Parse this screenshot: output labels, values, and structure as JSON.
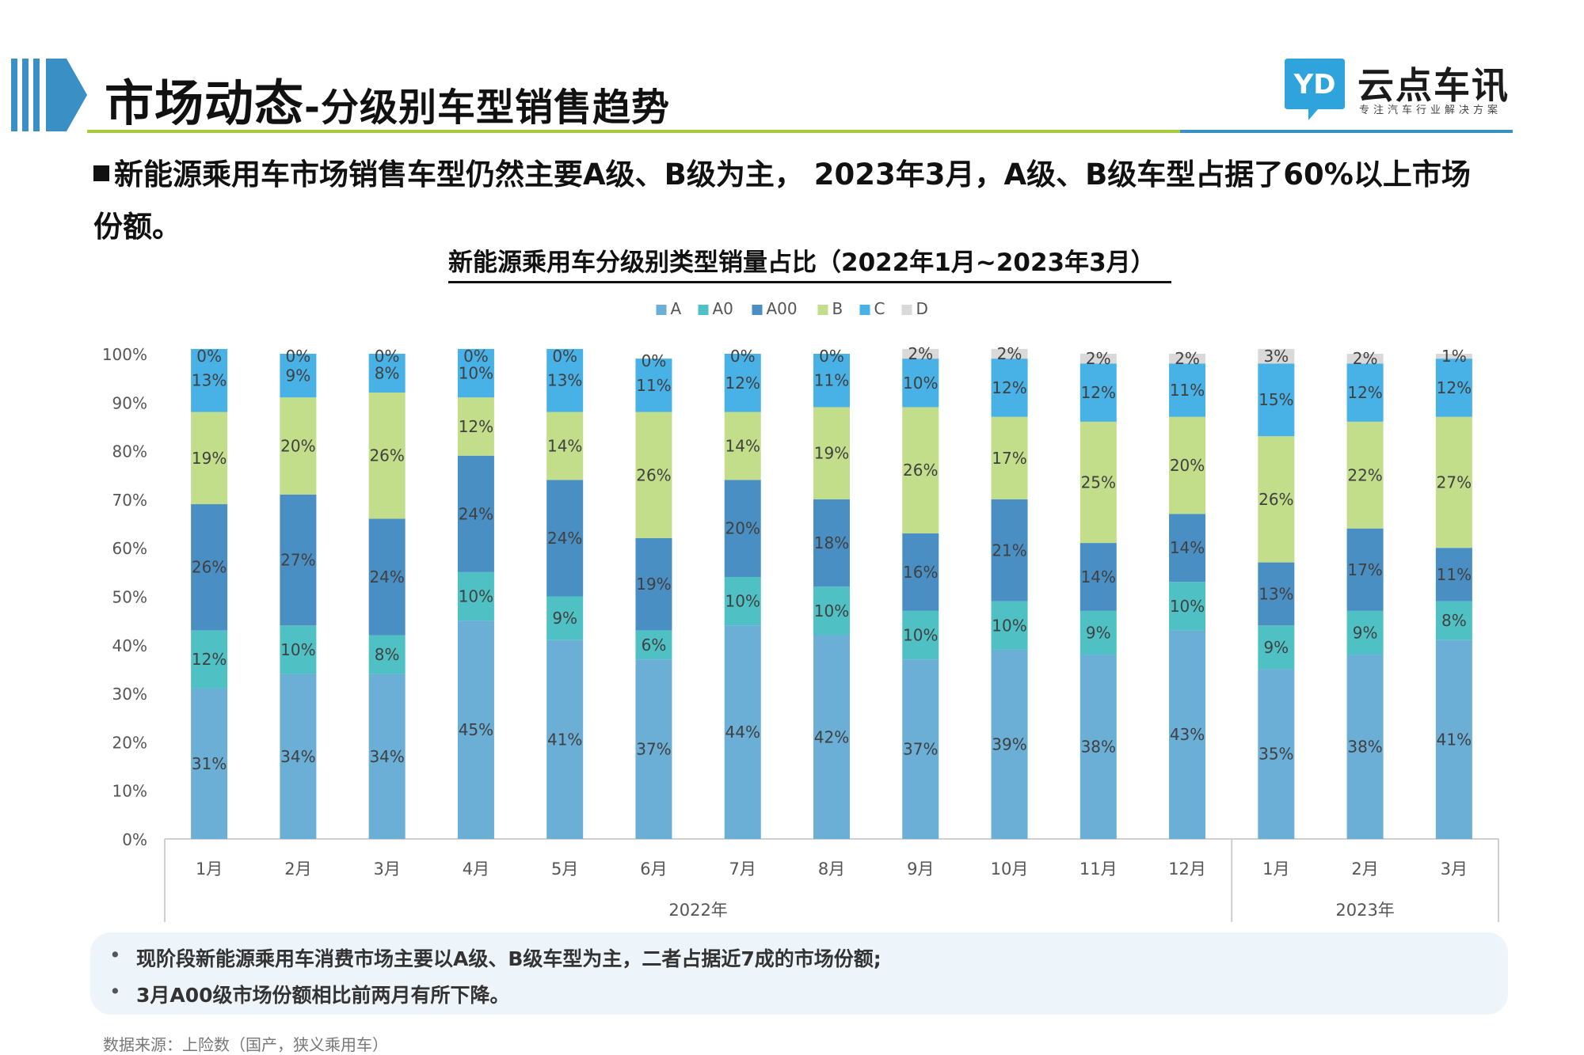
{
  "header": {
    "title_main": "市场动态",
    "title_sub": "-分级别车型销售趋势",
    "logo_mark_text": "YD",
    "logo_name": "云点车讯",
    "logo_tagline": "专注汽车行业解决方案"
  },
  "lead": {
    "text": "新能源乘用车市场销售车型仍然主要A级、B级为主， 2023年3月，A级、B级车型占据了60%以上市场份额。"
  },
  "colors": {
    "A": "#6baed6",
    "A0": "#4fc1c5",
    "A00": "#4a8fc3",
    "B": "#c2de8b",
    "C": "#48b1e6",
    "D": "#d9d9d9",
    "rule_green": "#a9c93f",
    "rule_blue": "#3a8fc4"
  },
  "chart_data": {
    "type": "bar",
    "stacked": true,
    "title": "新能源乘用车分级别类型销量占比（2022年1月~2023年3月）",
    "categories": [
      "1月",
      "2月",
      "3月",
      "4月",
      "5月",
      "6月",
      "7月",
      "8月",
      "9月",
      "10月",
      "11月",
      "12月",
      "1月",
      "2月",
      "3月"
    ],
    "groups": [
      {
        "label": "2022年",
        "count": 12
      },
      {
        "label": "2023年",
        "count": 3
      }
    ],
    "yticks": [
      "0%",
      "10%",
      "20%",
      "30%",
      "40%",
      "50%",
      "60%",
      "70%",
      "80%",
      "90%",
      "100%"
    ],
    "ylim": [
      0,
      100
    ],
    "legend_position": "top",
    "series": [
      {
        "name": "A",
        "values": [
          31,
          34,
          34,
          45,
          41,
          37,
          44,
          42,
          37,
          39,
          38,
          43,
          35,
          38,
          41
        ]
      },
      {
        "name": "A0",
        "values": [
          12,
          10,
          8,
          10,
          9,
          6,
          10,
          10,
          10,
          10,
          9,
          10,
          9,
          9,
          8
        ]
      },
      {
        "name": "A00",
        "values": [
          26,
          27,
          24,
          24,
          24,
          19,
          20,
          18,
          16,
          21,
          14,
          14,
          13,
          17,
          11
        ]
      },
      {
        "name": "B",
        "values": [
          19,
          20,
          26,
          12,
          14,
          26,
          14,
          19,
          26,
          17,
          25,
          20,
          26,
          22,
          27
        ]
      },
      {
        "name": "C",
        "values": [
          13,
          9,
          8,
          10,
          13,
          11,
          12,
          11,
          10,
          12,
          12,
          11,
          15,
          12,
          12
        ]
      },
      {
        "name": "D",
        "values": [
          0,
          0,
          0,
          0,
          0,
          0,
          0,
          0,
          2,
          2,
          2,
          2,
          3,
          2,
          1
        ]
      }
    ]
  },
  "notes": [
    "现阶段新能源乘用车消费市场主要以A级、B级车型为主，二者占据近7成的市场份额;",
    "3月A00级市场份额相比前两月有所下降。"
  ],
  "source": "数据来源：上险数（国产，狭义乘用车）"
}
